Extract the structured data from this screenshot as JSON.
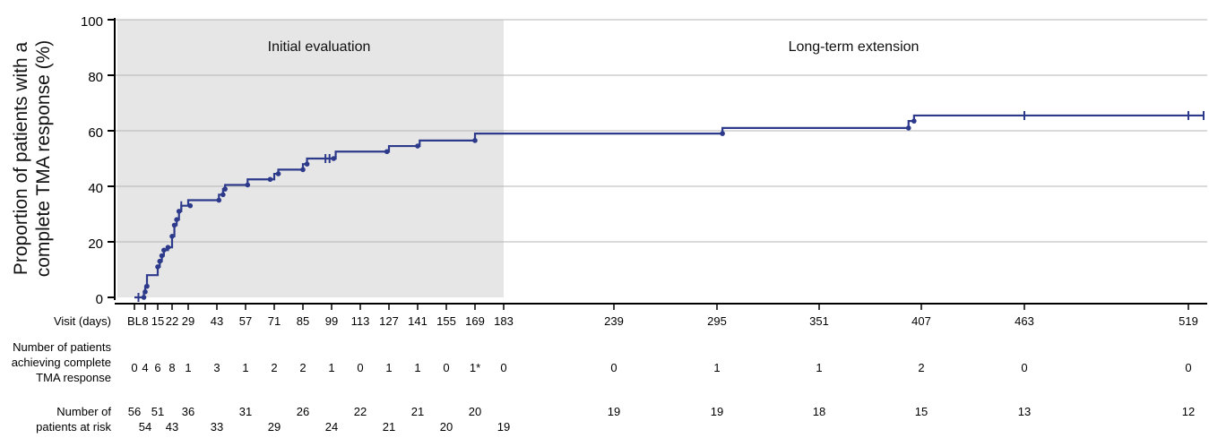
{
  "chart_data": {
    "type": "line",
    "ylabel_line1": "Proportion of patients with a",
    "ylabel_line2": "complete TMA response (%)",
    "ylim": [
      0,
      100
    ],
    "y_ticks": [
      "0",
      "20",
      "40",
      "60",
      "80",
      "100"
    ],
    "grid": true,
    "regions": [
      {
        "name": "Initial evaluation",
        "x_from": 0,
        "x_to": 183,
        "shaded": true
      },
      {
        "name": "Long-term extension",
        "x_from": 183,
        "x_to": 525,
        "shaded": false
      }
    ],
    "x_row_label": "Visit (days)",
    "x_ticks": [
      {
        "x": 0,
        "label": "BL"
      },
      {
        "x": 8,
        "label": "8"
      },
      {
        "x": 15,
        "label": "15"
      },
      {
        "x": 22,
        "label": "22"
      },
      {
        "x": 29,
        "label": "29"
      },
      {
        "x": 43,
        "label": "43"
      },
      {
        "x": 57,
        "label": "57"
      },
      {
        "x": 71,
        "label": "71"
      },
      {
        "x": 85,
        "label": "85"
      },
      {
        "x": 99,
        "label": "99"
      },
      {
        "x": 113,
        "label": "113"
      },
      {
        "x": 127,
        "label": "127"
      },
      {
        "x": 141,
        "label": "141"
      },
      {
        "x": 155,
        "label": "155"
      },
      {
        "x": 169,
        "label": "169"
      },
      {
        "x": 183,
        "label": "183"
      },
      {
        "x": 239,
        "label": "239"
      },
      {
        "x": 295,
        "label": "295"
      },
      {
        "x": 351,
        "label": "351"
      },
      {
        "x": 407,
        "label": "407"
      },
      {
        "x": 463,
        "label": "463"
      },
      {
        "x": 519,
        "label": "519"
      }
    ],
    "series": [
      {
        "color": "#2d3a8c",
        "steps": [
          [
            0,
            0
          ],
          [
            6,
            0
          ],
          [
            7,
            2
          ],
          [
            8,
            4
          ],
          [
            9,
            8
          ],
          [
            14,
            8
          ],
          [
            15,
            11
          ],
          [
            16,
            13
          ],
          [
            17,
            15
          ],
          [
            18,
            17
          ],
          [
            20,
            18
          ],
          [
            22,
            22
          ],
          [
            23,
            26
          ],
          [
            24,
            28
          ],
          [
            25,
            31
          ],
          [
            26,
            33
          ],
          [
            29,
            35
          ],
          [
            43,
            35
          ],
          [
            44,
            37
          ],
          [
            46,
            39
          ],
          [
            47,
            40.5
          ],
          [
            57,
            40.5
          ],
          [
            58,
            42.5
          ],
          [
            69,
            42.5
          ],
          [
            71,
            44.5
          ],
          [
            73,
            46
          ],
          [
            84,
            46
          ],
          [
            85,
            48
          ],
          [
            87,
            50
          ],
          [
            100,
            50
          ],
          [
            101,
            52.5
          ],
          [
            126,
            52.5
          ],
          [
            127,
            54.5
          ],
          [
            141,
            54.5
          ],
          [
            142,
            56.5
          ],
          [
            168,
            56.5
          ],
          [
            169,
            59
          ],
          [
            297,
            59
          ],
          [
            298,
            61
          ],
          [
            399,
            61
          ],
          [
            400,
            63.5
          ],
          [
            403,
            65.5
          ],
          [
            525,
            65.5
          ]
        ],
        "event_points": [
          [
            7,
            0
          ],
          [
            8,
            2
          ],
          [
            9,
            4
          ],
          [
            15,
            11
          ],
          [
            16,
            13
          ],
          [
            17,
            15
          ],
          [
            18,
            17
          ],
          [
            20,
            18
          ],
          [
            22,
            22
          ],
          [
            23,
            26
          ],
          [
            24,
            28
          ],
          [
            25,
            31
          ],
          [
            30,
            33
          ],
          [
            44,
            35
          ],
          [
            46,
            37
          ],
          [
            47,
            39
          ],
          [
            58,
            40.5
          ],
          [
            69,
            42.5
          ],
          [
            73,
            44.5
          ],
          [
            85,
            46
          ],
          [
            87,
            48
          ],
          [
            100,
            50
          ],
          [
            126,
            52.5
          ],
          [
            141,
            54.5
          ],
          [
            169,
            56.5
          ],
          [
            298,
            59
          ],
          [
            400,
            61
          ],
          [
            403,
            63.5
          ]
        ],
        "censor_points": [
          [
            3,
            0
          ],
          [
            26,
            33
          ],
          [
            96,
            50
          ],
          [
            98,
            50
          ],
          [
            463,
            65.5
          ],
          [
            519,
            65.5
          ],
          [
            525,
            65.5
          ]
        ]
      }
    ],
    "table": {
      "response_label": [
        "Number of patients",
        "achieving complete",
        "TMA response"
      ],
      "response_counts": [
        {
          "x": 0,
          "label": "0"
        },
        {
          "x": 8,
          "label": "4"
        },
        {
          "x": 15,
          "label": "6"
        },
        {
          "x": 22,
          "label": "8"
        },
        {
          "x": 29,
          "label": "1"
        },
        {
          "x": 43,
          "label": "3"
        },
        {
          "x": 57,
          "label": "1"
        },
        {
          "x": 71,
          "label": "2"
        },
        {
          "x": 85,
          "label": "2"
        },
        {
          "x": 99,
          "label": "1"
        },
        {
          "x": 113,
          "label": "0"
        },
        {
          "x": 127,
          "label": "1"
        },
        {
          "x": 141,
          "label": "1"
        },
        {
          "x": 155,
          "label": "0"
        },
        {
          "x": 169,
          "label": "1*"
        },
        {
          "x": 183,
          "label": "0"
        },
        {
          "x": 239,
          "label": "0"
        },
        {
          "x": 295,
          "label": "1"
        },
        {
          "x": 351,
          "label": "1"
        },
        {
          "x": 407,
          "label": "2"
        },
        {
          "x": 463,
          "label": "0"
        },
        {
          "x": 519,
          "label": "0"
        }
      ],
      "risk_label": [
        "Number of",
        "patients at risk"
      ],
      "risk_row1": [
        {
          "x": 0,
          "label": "56"
        },
        {
          "x": 15,
          "label": "51"
        },
        {
          "x": 29,
          "label": "36"
        },
        {
          "x": 57,
          "label": "31"
        },
        {
          "x": 85,
          "label": "26"
        },
        {
          "x": 113,
          "label": "22"
        },
        {
          "x": 141,
          "label": "21"
        },
        {
          "x": 169,
          "label": "20"
        },
        {
          "x": 239,
          "label": "19"
        },
        {
          "x": 295,
          "label": "19"
        },
        {
          "x": 351,
          "label": "18"
        },
        {
          "x": 407,
          "label": "15"
        },
        {
          "x": 463,
          "label": "13"
        },
        {
          "x": 519,
          "label": "12"
        }
      ],
      "risk_row2": [
        {
          "x": 8,
          "label": "54"
        },
        {
          "x": 22,
          "label": "43"
        },
        {
          "x": 43,
          "label": "33"
        },
        {
          "x": 71,
          "label": "29"
        },
        {
          "x": 99,
          "label": "24"
        },
        {
          "x": 127,
          "label": "21"
        },
        {
          "x": 155,
          "label": "20"
        },
        {
          "x": 183,
          "label": "19"
        }
      ]
    }
  }
}
